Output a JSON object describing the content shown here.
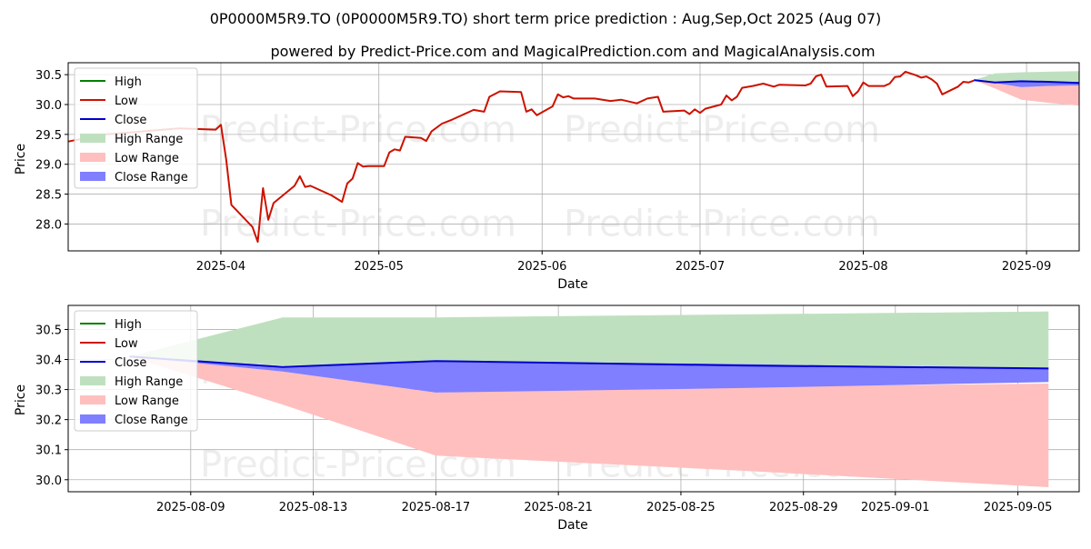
{
  "title": "0P0000M5R9.TO (0P0000M5R9.TO) short term price prediction : Aug,Sep,Oct 2025 (Aug 07)",
  "subtitle": "powered by Predict-Price.com and MagicalPrediction.com and MagicalAnalysis.com",
  "watermark": "Predict-Price.com",
  "colors": {
    "high": "#008000",
    "low": "#cc1100",
    "close": "#0000cc",
    "high_range": "#bfe0bf",
    "low_range": "#ffbfbf",
    "close_range": "#7f7fff",
    "grid": "#b0b0b0"
  },
  "chart_data": [
    {
      "type": "line",
      "xlabel": "Date",
      "ylabel": "Price",
      "x_ticks": [
        "2025-04",
        "2025-05",
        "2025-06",
        "2025-07",
        "2025-08",
        "2025-09"
      ],
      "y_ticks": [
        "28.0",
        "28.5",
        "29.0",
        "29.5",
        "30.0",
        "30.5"
      ],
      "ylim": [
        27.55,
        30.7
      ],
      "xlim": [
        "2025-03-03",
        "2025-09-11"
      ],
      "grid": true,
      "legend_placement": "top-left",
      "legend": [
        "High",
        "Low",
        "Close",
        "High Range",
        "Low Range",
        "Close Range"
      ],
      "low_series": [
        [
          "2025-03-03",
          29.38
        ],
        [
          "2025-03-10",
          29.5
        ],
        [
          "2025-03-17",
          29.55
        ],
        [
          "2025-03-24",
          29.6
        ],
        [
          "2025-03-31",
          29.58
        ],
        [
          "2025-04-01",
          29.66
        ],
        [
          "2025-04-02",
          29.08
        ],
        [
          "2025-04-03",
          28.32
        ],
        [
          "2025-04-07",
          27.95
        ],
        [
          "2025-04-08",
          27.7
        ],
        [
          "2025-04-09",
          28.6
        ],
        [
          "2025-04-10",
          28.07
        ],
        [
          "2025-04-11",
          28.35
        ],
        [
          "2025-04-15",
          28.64
        ],
        [
          "2025-04-16",
          28.8
        ],
        [
          "2025-04-17",
          28.62
        ],
        [
          "2025-04-18",
          28.64
        ],
        [
          "2025-04-22",
          28.48
        ],
        [
          "2025-04-24",
          28.37
        ],
        [
          "2025-04-25",
          28.68
        ],
        [
          "2025-04-26",
          28.76
        ],
        [
          "2025-04-27",
          29.02
        ],
        [
          "2025-04-28",
          28.96
        ],
        [
          "2025-04-29",
          28.97
        ],
        [
          "2025-05-02",
          28.97
        ],
        [
          "2025-05-03",
          29.2
        ],
        [
          "2025-05-04",
          29.25
        ],
        [
          "2025-05-05",
          29.23
        ],
        [
          "2025-05-06",
          29.46
        ],
        [
          "2025-05-09",
          29.44
        ],
        [
          "2025-05-10",
          29.39
        ],
        [
          "2025-05-11",
          29.55
        ],
        [
          "2025-05-13",
          29.68
        ],
        [
          "2025-05-15",
          29.75
        ],
        [
          "2025-05-19",
          29.91
        ],
        [
          "2025-05-21",
          29.88
        ],
        [
          "2025-05-22",
          30.13
        ],
        [
          "2025-05-24",
          30.22
        ],
        [
          "2025-05-28",
          30.21
        ],
        [
          "2025-05-29",
          29.88
        ],
        [
          "2025-05-30",
          29.92
        ],
        [
          "2025-05-31",
          29.82
        ],
        [
          "2025-06-03",
          29.97
        ],
        [
          "2025-06-04",
          30.17
        ],
        [
          "2025-06-05",
          30.12
        ],
        [
          "2025-06-06",
          30.14
        ],
        [
          "2025-06-07",
          30.1
        ],
        [
          "2025-06-11",
          30.1
        ],
        [
          "2025-06-14",
          30.06
        ],
        [
          "2025-06-16",
          30.08
        ],
        [
          "2025-06-19",
          30.02
        ],
        [
          "2025-06-21",
          30.1
        ],
        [
          "2025-06-23",
          30.13
        ],
        [
          "2025-06-24",
          29.88
        ],
        [
          "2025-06-26",
          29.89
        ],
        [
          "2025-06-28",
          29.9
        ],
        [
          "2025-06-29",
          29.84
        ],
        [
          "2025-06-30",
          29.92
        ],
        [
          "2025-07-01",
          29.86
        ],
        [
          "2025-07-02",
          29.93
        ],
        [
          "2025-07-05",
          30.0
        ],
        [
          "2025-07-06",
          30.15
        ],
        [
          "2025-07-07",
          30.07
        ],
        [
          "2025-07-08",
          30.13
        ],
        [
          "2025-07-09",
          30.28
        ],
        [
          "2025-07-11",
          30.31
        ],
        [
          "2025-07-13",
          30.35
        ],
        [
          "2025-07-15",
          30.3
        ],
        [
          "2025-07-16",
          30.33
        ],
        [
          "2025-07-21",
          30.32
        ],
        [
          "2025-07-22",
          30.35
        ],
        [
          "2025-07-23",
          30.47
        ],
        [
          "2025-07-24",
          30.5
        ],
        [
          "2025-07-25",
          30.3
        ],
        [
          "2025-07-29",
          30.31
        ],
        [
          "2025-07-30",
          30.14
        ],
        [
          "2025-07-31",
          30.22
        ],
        [
          "2025-08-01",
          30.37
        ],
        [
          "2025-08-02",
          30.31
        ],
        [
          "2025-08-05",
          30.31
        ],
        [
          "2025-08-06",
          30.35
        ],
        [
          "2025-08-07",
          30.46
        ],
        [
          "2025-08-08",
          30.47
        ],
        [
          "2025-08-09",
          30.55
        ],
        [
          "2025-08-11",
          30.49
        ],
        [
          "2025-08-12",
          30.45
        ],
        [
          "2025-08-13",
          30.47
        ],
        [
          "2025-08-14",
          30.42
        ],
        [
          "2025-08-15",
          30.35
        ],
        [
          "2025-08-16",
          30.17
        ],
        [
          "2025-08-19",
          30.3
        ],
        [
          "2025-08-20",
          30.38
        ],
        [
          "2025-08-21",
          30.37
        ],
        [
          "2025-08-22",
          30.4
        ]
      ],
      "forecast": {
        "dates": [
          "2025-08-22",
          "2025-08-26",
          "2025-08-31",
          "2025-09-05",
          "2025-09-11"
        ],
        "high_upper": [
          30.41,
          30.52,
          30.54,
          30.55,
          30.56
        ],
        "low_lower": [
          30.41,
          30.27,
          30.08,
          30.03,
          29.98
        ],
        "close_upper": [
          30.41,
          30.37,
          30.39,
          30.38,
          30.36
        ],
        "close_lower": [
          30.41,
          30.36,
          30.29,
          30.31,
          30.32
        ],
        "close": [
          30.41,
          30.37,
          30.39,
          30.38,
          30.36
        ]
      }
    },
    {
      "type": "area",
      "xlabel": "Date",
      "ylabel": "Price",
      "x_ticks": [
        "2025-08-09",
        "2025-08-13",
        "2025-08-17",
        "2025-08-21",
        "2025-08-25",
        "2025-08-29",
        "2025-09-01",
        "2025-09-05"
      ],
      "y_ticks": [
        "30.0",
        "30.1",
        "30.2",
        "30.3",
        "30.4",
        "30.5"
      ],
      "ylim": [
        29.96,
        30.58
      ],
      "grid": true,
      "legend_placement": "top-left",
      "legend": [
        "High",
        "Low",
        "Close",
        "High Range",
        "Low Range",
        "Close Range"
      ],
      "x": [
        "2025-08-07",
        "2025-08-12",
        "2025-08-17",
        "2025-08-27",
        "2025-09-06"
      ],
      "high_range_upper": [
        30.41,
        30.54,
        30.54,
        30.55,
        30.56
      ],
      "high_range_lower": [
        30.41,
        30.38,
        30.39,
        30.385,
        30.37
      ],
      "low_range_upper": [
        30.41,
        30.36,
        30.29,
        30.31,
        30.32
      ],
      "low_range_lower": [
        30.41,
        30.25,
        30.08,
        30.03,
        29.975
      ],
      "close_range_upper": [
        30.41,
        30.375,
        30.395,
        30.385,
        30.37
      ],
      "close_range_lower": [
        30.41,
        30.36,
        30.29,
        30.305,
        30.325
      ],
      "close": [
        30.41,
        30.375,
        30.395,
        30.38,
        30.37
      ]
    }
  ]
}
